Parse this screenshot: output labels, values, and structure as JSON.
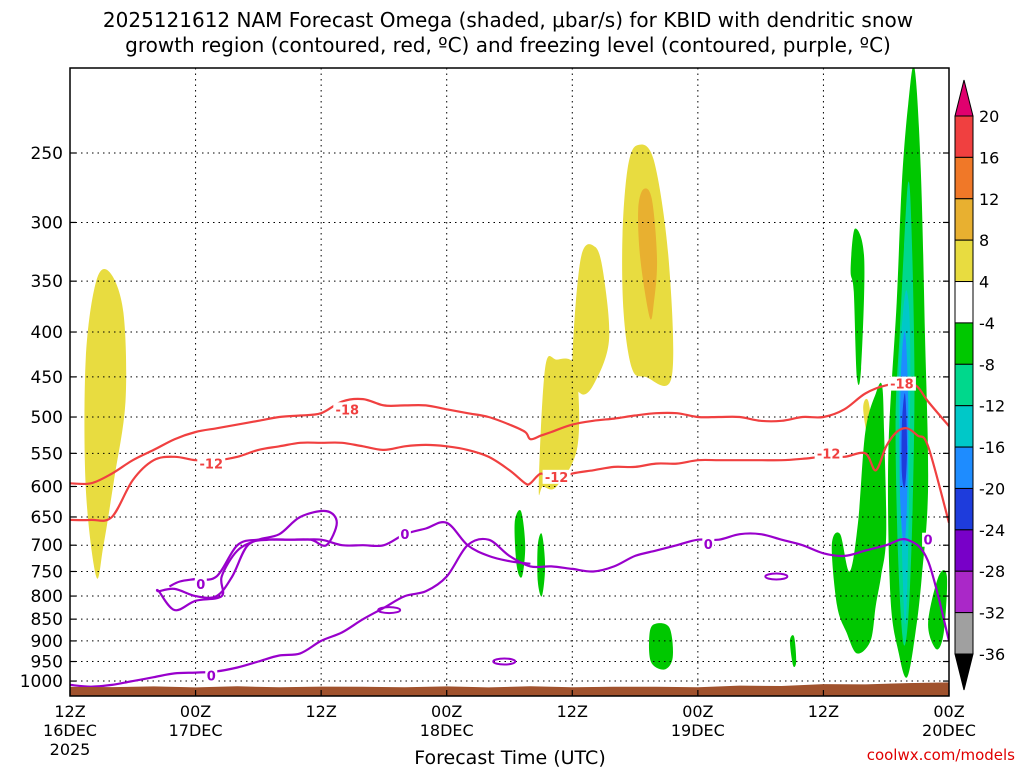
{
  "chart_data": {
    "type": "heatmap",
    "title_line1": "2025121612 NAM Forecast Omega (shaded, μbar/s) for KBID with dendritic snow",
    "title_line2": "growth region (contoured, red, ºC) and freezing level (contoured, purple, ºC)",
    "xlabel": "Forecast Time (UTC)",
    "x_ticks": [
      {
        "time": "12Z",
        "date": "16DEC",
        "year": "2025"
      },
      {
        "time": "00Z",
        "date": "17DEC",
        "year": ""
      },
      {
        "time": "12Z",
        "date": "",
        "year": ""
      },
      {
        "time": "00Z",
        "date": "18DEC",
        "year": ""
      },
      {
        "time": "12Z",
        "date": "",
        "year": ""
      },
      {
        "time": "00Z",
        "date": "19DEC",
        "year": ""
      },
      {
        "time": "12Z",
        "date": "",
        "year": ""
      },
      {
        "time": "00Z",
        "date": "20DEC",
        "year": ""
      }
    ],
    "x_range_hours": [
      0,
      84
    ],
    "y_axis": "pressure (hPa), log scale, inverted",
    "y_ticks": [
      250,
      300,
      350,
      400,
      450,
      500,
      550,
      600,
      650,
      700,
      750,
      800,
      850,
      900,
      950,
      1000
    ],
    "y_range": [
      200,
      1040
    ],
    "grid": true,
    "colorbar": {
      "labels": [
        "20",
        "16",
        "12",
        "8",
        "4",
        "-4",
        "-8",
        "-12",
        "-16",
        "-20",
        "-24",
        "-28",
        "-32",
        "-36"
      ],
      "colors": [
        "#e0006e",
        "#f04040",
        "#f07828",
        "#e8b030",
        "#e8dc40",
        "#ffffff",
        "#00c800",
        "#00d88c",
        "#00c8c8",
        "#1e8cff",
        "#1e3cdc",
        "#7800c8",
        "#aa28c8",
        "#a0a0a0",
        "#000000"
      ]
    },
    "omega_regions": [
      {
        "value": 6,
        "color": "#e8dc40",
        "hours": [
          1.5,
          2.5,
          3.8,
          5.1,
          5.3,
          4.2,
          3.2,
          2.5,
          1.5
        ],
        "levels": [
          430,
          350,
          342,
          380,
          480,
          590,
          700,
          760,
          600
        ]
      },
      {
        "value": 6,
        "color": "#e8dc40",
        "hours": [
          44.8,
          45.4,
          46.5,
          48.3,
          48.5,
          46.5,
          45.2
        ],
        "levels": [
          600,
          440,
          430,
          440,
          540,
          600,
          600
        ]
      },
      {
        "value": 6,
        "color": "#e8dc40",
        "hours": [
          48.0,
          48.8,
          50.2,
          51.0,
          51.5,
          50.0,
          48.8
        ],
        "levels": [
          440,
          330,
          320,
          345,
          410,
          460,
          470
        ]
      },
      {
        "value": 6,
        "color": "#e8dc40",
        "hours": [
          52.8,
          53.3,
          54.2,
          55.8,
          57.2,
          57.5,
          55.0,
          53.7,
          52.9
        ],
        "levels": [
          310,
          260,
          245,
          255,
          330,
          450,
          450,
          440,
          380
        ]
      },
      {
        "value": 10,
        "color": "#e8b030",
        "hours": [
          54.3,
          54.8,
          55.6,
          56.1,
          55.8,
          55.4,
          54.5
        ],
        "levels": [
          290,
          275,
          282,
          330,
          370,
          385,
          330
        ]
      },
      {
        "value": 6,
        "color": "#e8dc40",
        "hours": [
          75.8,
          76.3,
          76.8,
          76.5
        ],
        "levels": [
          490,
          480,
          540,
          550
        ]
      },
      {
        "value": -6,
        "color": "#00c800",
        "hours": [
          42.5,
          43.1,
          43.5,
          43.2,
          42.7
        ],
        "levels": [
          660,
          640,
          700,
          760,
          740
        ]
      },
      {
        "value": -6,
        "color": "#00c800",
        "hours": [
          44.7,
          45.1,
          45.4,
          45.1,
          44.7
        ],
        "levels": [
          700,
          680,
          740,
          800,
          770
        ]
      },
      {
        "value": -6,
        "color": "#00c800",
        "hours": [
          55.4,
          56.0,
          57.3,
          57.6,
          56.8,
          55.5
        ],
        "levels": [
          880,
          860,
          870,
          940,
          970,
          950
        ]
      },
      {
        "value": -6,
        "color": "#00c800",
        "hours": [
          68.8,
          69.2,
          69.4,
          69.1
        ],
        "levels": [
          900,
          890,
          950,
          960
        ]
      },
      {
        "value": -6,
        "color": "#00c800",
        "hours": [
          74.6,
          75.0,
          75.9,
          75.6,
          75.2,
          74.9
        ],
        "levels": [
          340,
          305,
          330,
          440,
          450,
          360
        ]
      },
      {
        "value": -6,
        "color": "#00c800",
        "hours": [
          72.8,
          73.6,
          74.5,
          75.3,
          76.0,
          77.0,
          77.6,
          77.8,
          78.0,
          77.5,
          77.0,
          76.5,
          75.2,
          74.2,
          73.3
        ],
        "levels": [
          700,
          680,
          750,
          660,
          520,
          470,
          460,
          520,
          680,
          760,
          820,
          900,
          930,
          880,
          820
        ]
      },
      {
        "value": -6,
        "color": "#00c800",
        "hours": [
          79.5,
          80.0,
          80.7,
          81.2,
          80.9,
          80.4
        ],
        "levels": [
          620,
          520,
          450,
          600,
          700,
          660
        ]
      },
      {
        "value": -6,
        "color": "#00c800",
        "hours": [
          78.2,
          79.0,
          79.5,
          80.1,
          80.7,
          81.3,
          81.7,
          82.0,
          81.4,
          80.8,
          80.0,
          79.2,
          78.4
        ],
        "levels": [
          550,
          370,
          270,
          220,
          200,
          260,
          400,
          600,
          760,
          880,
          990,
          930,
          800
        ]
      },
      {
        "value": -10,
        "color": "#00d88c",
        "hours": [
          78.9,
          79.3,
          79.7,
          80.1,
          80.4,
          80.7,
          80.5,
          80.1,
          79.6,
          79.1
        ],
        "levels": [
          500,
          400,
          320,
          270,
          300,
          450,
          650,
          850,
          900,
          700
        ]
      },
      {
        "value": -14,
        "color": "#00c8c8",
        "hours": [
          79.2,
          79.6,
          80.0,
          80.3,
          80.1,
          79.8,
          79.4
        ],
        "levels": [
          460,
          380,
          360,
          420,
          700,
          860,
          640
        ]
      },
      {
        "value": -18,
        "color": "#1e8cff",
        "hours": [
          79.4,
          79.8,
          80.1,
          80.0,
          79.7,
          79.3
        ],
        "levels": [
          450,
          400,
          480,
          620,
          700,
          600
        ]
      },
      {
        "value": -22,
        "color": "#1e3cdc",
        "hours": [
          79.5,
          79.8,
          80.0,
          79.8,
          79.5
        ],
        "levels": [
          510,
          470,
          540,
          600,
          580
        ]
      },
      {
        "value": -6,
        "color": "#00c800",
        "hours": [
          82.0,
          83.0,
          83.8,
          83.5,
          82.8
        ],
        "levels": [
          860,
          760,
          760,
          880,
          920
        ]
      }
    ],
    "dgz_contours": [
      {
        "label": "-18",
        "hours": [
          0,
          2,
          4,
          6,
          8,
          10,
          12,
          14,
          16,
          18,
          20,
          22,
          24,
          26,
          28,
          30,
          32,
          34,
          36,
          38,
          40,
          42,
          43.5,
          44,
          45,
          46,
          48,
          50,
          52,
          54,
          56,
          58,
          60,
          62,
          64,
          66,
          68,
          70,
          72,
          74,
          76,
          78,
          80,
          81,
          82,
          84
        ],
        "levels": [
          595,
          595,
          580,
          560,
          545,
          530,
          520,
          515,
          510,
          505,
          500,
          498,
          495,
          480,
          477,
          485,
          485,
          485,
          490,
          495,
          500,
          510,
          520,
          530,
          525,
          520,
          510,
          505,
          502,
          498,
          495,
          495,
          500,
          500,
          500,
          505,
          505,
          500,
          500,
          490,
          470,
          460,
          458,
          462,
          480,
          512
        ]
      },
      {
        "label": "-12",
        "hours": [
          0,
          2,
          4,
          6,
          8,
          10,
          12,
          14,
          16,
          18,
          20,
          22,
          24,
          26,
          28,
          30,
          32,
          34,
          36,
          38,
          40,
          42,
          43.5,
          44,
          45,
          46,
          48,
          50,
          52,
          54,
          56,
          58,
          60,
          62,
          64,
          66,
          68,
          70,
          72,
          74,
          76,
          77,
          78,
          79,
          80,
          81,
          82,
          84
        ],
        "levels": [
          655,
          655,
          650,
          590,
          560,
          555,
          560,
          560,
          555,
          545,
          540,
          535,
          535,
          535,
          540,
          545,
          540,
          538,
          540,
          545,
          555,
          575,
          595,
          595,
          580,
          590,
          580,
          575,
          570,
          570,
          565,
          565,
          560,
          560,
          560,
          560,
          560,
          558,
          555,
          555,
          550,
          575,
          540,
          520,
          515,
          525,
          540,
          660
        ]
      }
    ],
    "freezing_contours": [
      {
        "label": "0",
        "hours": [
          0,
          2,
          4,
          6,
          8,
          10,
          12,
          14,
          16,
          18,
          20,
          22,
          24,
          26,
          28,
          30,
          32,
          34,
          36,
          38,
          40,
          42,
          44,
          46,
          48,
          50,
          52,
          54,
          56,
          58,
          60,
          62,
          64,
          66,
          68,
          70,
          72,
          74,
          76,
          78,
          80,
          82,
          84
        ],
        "levels": [
          1010,
          1015,
          1010,
          1000,
          990,
          980,
          978,
          975,
          965,
          950,
          935,
          930,
          900,
          880,
          850,
          825,
          800,
          790,
          760,
          700,
          690,
          720,
          740,
          740,
          745,
          750,
          740,
          720,
          710,
          700,
          690,
          690,
          680,
          680,
          690,
          700,
          715,
          720,
          710,
          700,
          690,
          730,
          900
        ]
      },
      {
        "label": "0",
        "hours": [
          9.5,
          10.5,
          12,
          14,
          16,
          18,
          20,
          22,
          24,
          26,
          28,
          30,
          32,
          34,
          36,
          38,
          40,
          42,
          44
        ],
        "levels": [
          780,
          770,
          765,
          760,
          700,
          690,
          690,
          690,
          690,
          700,
          700,
          700,
          680,
          670,
          660,
          700,
          720,
          730,
          735
        ]
      },
      {
        "label": "",
        "hours": [
          8.5,
          10,
          12,
          14,
          15.5,
          17,
          19,
          21,
          23,
          24.5,
          25.5,
          24.5,
          22,
          20,
          18,
          16,
          14.5,
          14.5,
          12,
          10,
          8.5
        ],
        "levels": [
          790,
          785,
          800,
          800,
          760,
          700,
          690,
          690,
          690,
          700,
          660,
          640,
          650,
          680,
          690,
          710,
          760,
          800,
          810,
          830,
          790
        ]
      }
    ],
    "small_zero_loops": [
      {
        "label": "0",
        "hour": 30.5,
        "level": 830
      },
      {
        "label": "0",
        "hour": 41.5,
        "level": 950
      },
      {
        "label": "0",
        "hour": 67.5,
        "level": 760
      }
    ],
    "contour_labels": [
      {
        "text": "-18",
        "hour": 26.5,
        "level": 490,
        "color": "#f04040"
      },
      {
        "text": "-12",
        "hour": 13.5,
        "level": 565,
        "color": "#f04040"
      },
      {
        "text": "-12",
        "hour": 46.5,
        "level": 585,
        "color": "#f04040"
      },
      {
        "text": "-12",
        "hour": 72.5,
        "level": 550,
        "color": "#f04040"
      },
      {
        "text": "-18",
        "hour": 79.5,
        "level": 458,
        "color": "#f04040"
      },
      {
        "text": "0",
        "hour": 12.5,
        "level": 775,
        "color": "#9900cc"
      },
      {
        "text": "0",
        "hour": 32,
        "level": 680,
        "color": "#9900cc"
      },
      {
        "text": "0",
        "hour": 61,
        "level": 698,
        "color": "#9900cc"
      },
      {
        "text": "0",
        "hour": 82,
        "level": 690,
        "color": "#9900cc"
      },
      {
        "text": "0",
        "hour": 13.5,
        "level": 985,
        "color": "#9900cc"
      }
    ],
    "terrain_level": 1010,
    "terrain_color": "#a0522d",
    "contour_colors": {
      "dgz": "#f04040",
      "freezing": "#9900cc"
    }
  },
  "credit": "coolwx.com/models"
}
